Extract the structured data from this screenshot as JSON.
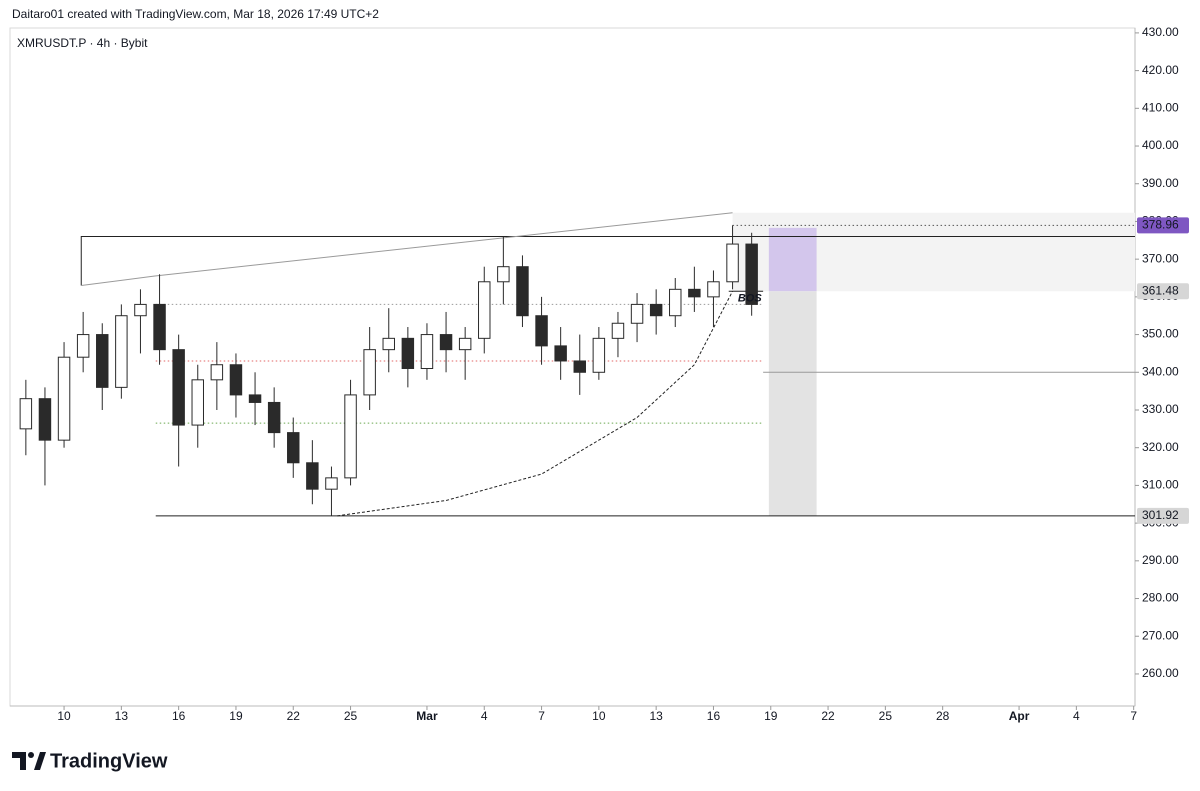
{
  "header": "Daitaro01 created with TradingView.com, Mar 18, 2026 17:49 UTC+2",
  "footer": {
    "brand": "TradingView"
  },
  "chart_data": {
    "type": "candlestick",
    "symbol": "XMRUSDT.P · 4h · Bybit",
    "x": [
      8,
      9,
      10,
      11,
      12,
      13,
      14,
      15,
      16,
      17,
      18,
      19,
      20,
      21,
      22,
      23,
      24,
      25,
      26,
      27,
      28,
      29,
      30,
      31,
      32,
      33,
      34,
      35,
      36,
      37,
      38,
      39,
      40,
      41,
      42,
      43,
      44,
      45,
      46
    ],
    "open": [
      325,
      333,
      322,
      344,
      350,
      336,
      355,
      358,
      346,
      326,
      338,
      342,
      334,
      332,
      324,
      316,
      309,
      312,
      334,
      346,
      349,
      341,
      350,
      346,
      349,
      364,
      368,
      355,
      347,
      343,
      340,
      349,
      353,
      358,
      355,
      362,
      360,
      364,
      374
    ],
    "high": [
      338,
      336,
      348,
      356,
      353,
      358,
      362,
      366,
      350,
      342,
      348,
      345,
      340,
      336,
      328,
      322,
      315,
      338,
      352,
      357,
      352,
      353,
      356,
      352,
      368,
      376,
      371,
      360,
      352,
      350,
      352,
      356,
      361,
      362,
      365,
      368,
      367,
      378.96,
      377
    ],
    "low": [
      318,
      310,
      320,
      340,
      330,
      333,
      345,
      342,
      315,
      320,
      330,
      328,
      326,
      320,
      312,
      305,
      301.92,
      310,
      330,
      340,
      336,
      338,
      340,
      338,
      345,
      358,
      352,
      342,
      338,
      334,
      338,
      344,
      348,
      350,
      352,
      356,
      352,
      362,
      355
    ],
    "close": [
      333,
      322,
      344,
      350,
      336,
      355,
      358,
      346,
      326,
      338,
      342,
      334,
      332,
      324,
      316,
      309,
      312,
      334,
      346,
      349,
      341,
      350,
      346,
      349,
      364,
      368,
      355,
      347,
      343,
      340,
      349,
      353,
      358,
      355,
      362,
      360,
      364,
      374,
      358
    ],
    "up_color": "#ffffff",
    "down_color": "#2a2a2a",
    "wick_color": "#2a2a2a",
    "xlim": [
      7.17,
      66.07
    ],
    "xticks": [
      10,
      13,
      16,
      19,
      22,
      25,
      {
        "value": 29,
        "label": "Mar"
      },
      {
        "value": 32,
        "label": "4"
      },
      {
        "value": 35,
        "label": "7"
      },
      {
        "value": 38,
        "label": "10"
      },
      {
        "value": 41,
        "label": "13"
      },
      {
        "value": 44,
        "label": "16"
      },
      {
        "value": 47,
        "label": "19"
      },
      {
        "value": 50,
        "label": "22"
      },
      {
        "value": 53,
        "label": "25"
      },
      {
        "value": 56,
        "label": "28"
      },
      {
        "value": 60,
        "label": "Apr"
      },
      {
        "value": 63,
        "label": "4"
      },
      {
        "value": 66,
        "label": "7"
      }
    ],
    "ylim": [
      251.5,
      431.3
    ],
    "yticks": [
      {
        "value": 430,
        "label": "430.00"
      },
      {
        "value": 420,
        "label": "420.00"
      },
      {
        "value": 410,
        "label": "410.00"
      },
      {
        "value": 400,
        "label": "400.00"
      },
      {
        "value": 390,
        "label": "390.00"
      },
      {
        "value": 380,
        "label": "380.00"
      },
      {
        "value": 370,
        "label": "370.00"
      },
      {
        "value": 360,
        "label": "360.00"
      },
      {
        "value": 350,
        "label": "350.00"
      },
      {
        "value": 340,
        "label": "340.00"
      },
      {
        "value": 330,
        "label": "330.00"
      },
      {
        "value": 320,
        "label": "320.00"
      },
      {
        "value": 310,
        "label": "310.00"
      },
      {
        "value": 300,
        "label": "300.00"
      },
      {
        "value": 290,
        "label": "290.00"
      },
      {
        "value": 280,
        "label": "280.00"
      },
      {
        "value": 270,
        "label": "270.00"
      },
      {
        "value": 260,
        "label": "260.00"
      }
    ],
    "zones": [
      {
        "x": [
          45,
          66.07
        ],
        "y": [
          361.5,
          382.3
        ],
        "color": "#f3f3f3"
      },
      {
        "x": [
          46.9,
          49.4
        ],
        "y": [
          361.48,
          378.3
        ],
        "color": "#d3c6ec"
      },
      {
        "x": [
          46.9,
          49.4
        ],
        "y": [
          301.92,
          361.48
        ],
        "color": "#e3e3e3"
      }
    ],
    "lines": [
      {
        "x": [
          10.9,
          10.9,
          66.07
        ],
        "y": [
          363,
          376,
          376
        ],
        "color": "#222222",
        "style": "solid"
      },
      {
        "x": [
          14.8,
          66.07
        ],
        "y": [
          301.92,
          301.92
        ],
        "color": "#222222",
        "style": "solid"
      },
      {
        "x": [
          46.6,
          66.07
        ],
        "y": [
          340,
          340
        ],
        "color": "#999999",
        "style": "solid"
      },
      {
        "x": [
          10.9,
          14.7,
          45
        ],
        "y": [
          363,
          365.5,
          382.3
        ],
        "color": "#9a9a9a",
        "style": "solid"
      },
      {
        "x": [
          14.8,
          46.6
        ],
        "y": [
          358,
          358
        ],
        "color": "#999999",
        "style": "dotted"
      },
      {
        "x": [
          14.8,
          46.6
        ],
        "y": [
          343,
          343
        ],
        "color": "#e06666",
        "style": "dotted"
      },
      {
        "x": [
          14.8,
          46.6
        ],
        "y": [
          326.5,
          326.5
        ],
        "color": "#6aa84f",
        "style": "dotted"
      },
      {
        "x": [
          45,
          66.07
        ],
        "y": [
          378.96,
          378.96
        ],
        "color": "#555555",
        "style": "dotted"
      },
      {
        "x": [
          44.8,
          46.6
        ],
        "y": [
          361.48,
          361.48
        ],
        "color": "#222222",
        "style": "solid"
      },
      {
        "x": [
          24.3,
          30,
          35,
          40,
          43,
          45
        ],
        "y": [
          301.92,
          306,
          313,
          328,
          342,
          361.5
        ],
        "color": "#222222",
        "style": "dashed"
      }
    ],
    "annotation": {
      "text": "BOS",
      "x": 45.9,
      "y": 359.5
    },
    "price_labels": [
      {
        "value": 378.96,
        "bg": "#7e57c2",
        "fg": "#ffffff"
      },
      {
        "value": 361.48,
        "bg": "#d6d6d6",
        "fg": "#131722"
      },
      {
        "value": 301.92,
        "bg": "#d6d6d6",
        "fg": "#131722"
      }
    ]
  }
}
